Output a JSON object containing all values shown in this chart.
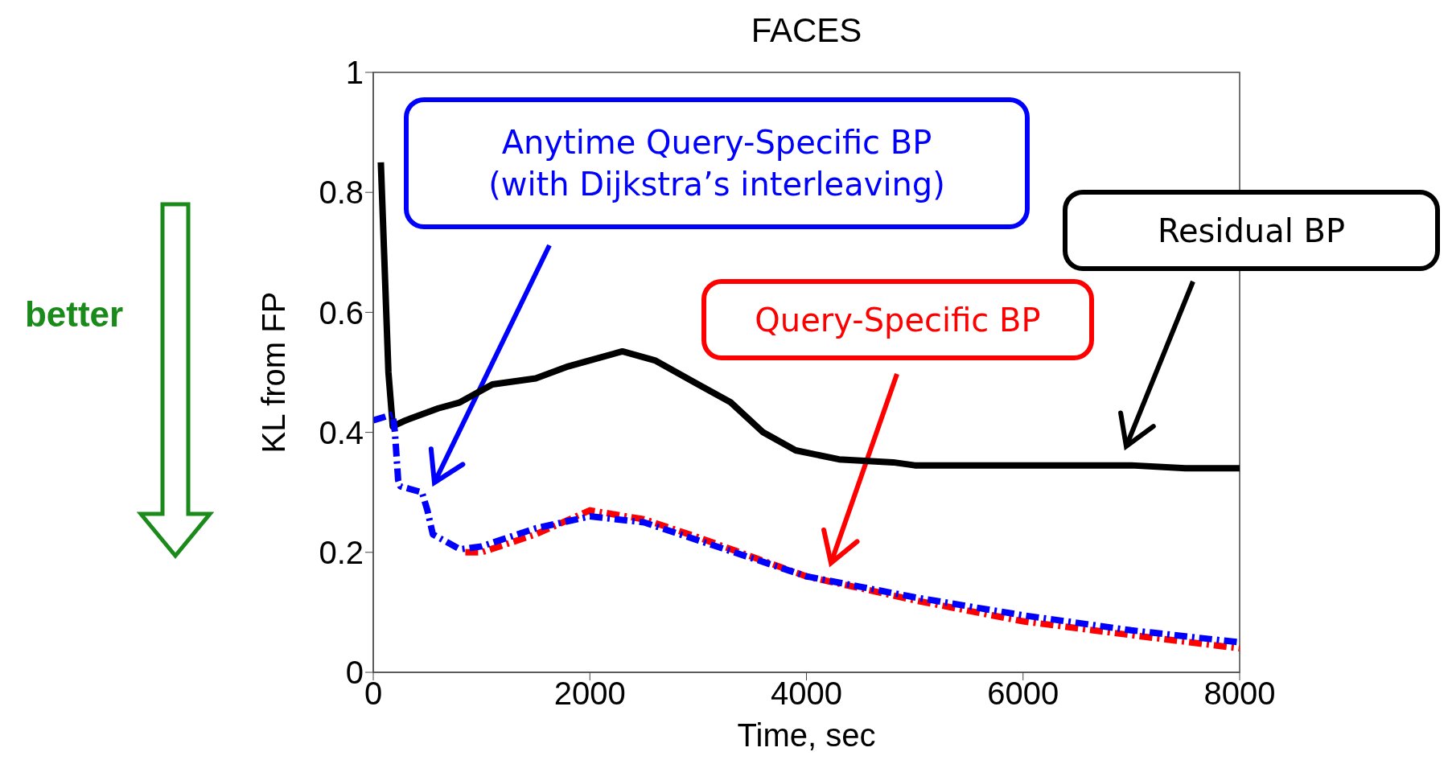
{
  "chart_data": {
    "type": "line",
    "title": "FACES",
    "xlabel": "Time, sec",
    "ylabel": "KL from FP",
    "xlim": [
      0,
      8000
    ],
    "xticks": [
      0,
      2000,
      4000,
      6000,
      8000
    ],
    "ylim": [
      0,
      1
    ],
    "yticks": [
      0,
      0.2,
      0.4,
      0.6,
      0.8,
      1
    ],
    "marker": "none",
    "annotations": [
      "better"
    ],
    "series": [
      {
        "name": "Residual BP",
        "color": "#000000",
        "line_style": "solid",
        "x": [
          70,
          100,
          140,
          180,
          300,
          600,
          800,
          1100,
          1500,
          1800,
          2000,
          2300,
          2600,
          3000,
          3300,
          3600,
          3900,
          4300,
          4800,
          5000,
          6000,
          7000,
          7500,
          8000
        ],
        "values": [
          0.85,
          0.7,
          0.5,
          0.41,
          0.42,
          0.44,
          0.45,
          0.48,
          0.49,
          0.51,
          0.52,
          0.535,
          0.52,
          0.48,
          0.45,
          0.4,
          0.37,
          0.355,
          0.35,
          0.345,
          0.345,
          0.345,
          0.34,
          0.34
        ]
      },
      {
        "name": "Query-Specific BP",
        "color": "#ff0000",
        "line_style": "dashed",
        "x": [
          850,
          1000,
          1500,
          2000,
          2500,
          3000,
          4000,
          5000,
          6000,
          7000,
          8000
        ],
        "values": [
          0.2,
          0.2,
          0.23,
          0.27,
          0.255,
          0.225,
          0.16,
          0.12,
          0.085,
          0.062,
          0.04
        ]
      },
      {
        "name": "Anytime Query-Specific BP (with Dijkstra’s interleaving)",
        "color": "#0000ff",
        "line_style": "dashed",
        "x": [
          0,
          180,
          200,
          230,
          250,
          450,
          500,
          550,
          800,
          1000,
          1500,
          2000,
          2500,
          3000,
          4000,
          5000,
          6000,
          7000,
          8000
        ],
        "values": [
          0.42,
          0.43,
          0.4,
          0.32,
          0.31,
          0.3,
          0.27,
          0.23,
          0.205,
          0.21,
          0.24,
          0.26,
          0.25,
          0.22,
          0.16,
          0.125,
          0.095,
          0.07,
          0.05
        ]
      }
    ]
  }
}
